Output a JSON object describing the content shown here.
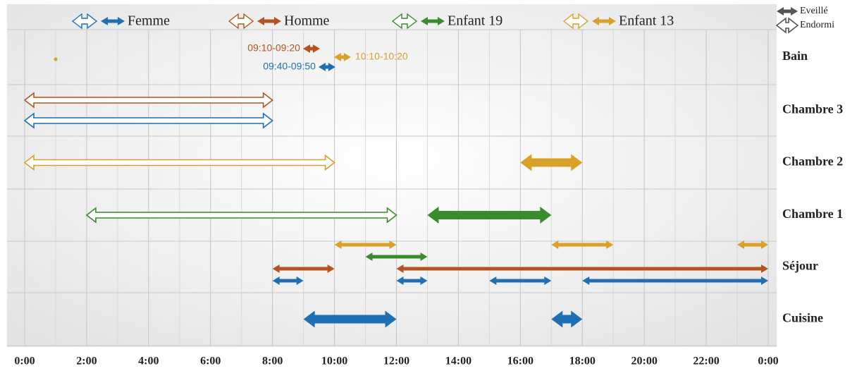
{
  "chart_data": {
    "type": "timeline",
    "persons": [
      {
        "name": "Femme",
        "color": "#1f6fb5"
      },
      {
        "name": "Homme",
        "color": "#b5541c"
      },
      {
        "name": "Enfant 19",
        "color": "#3a8a2e"
      },
      {
        "name": "Enfant 13",
        "color": "#d9a02a"
      }
    ],
    "states": [
      {
        "label": "Eveillé",
        "state": "awake"
      },
      {
        "label": "Endormi",
        "state": "asleep"
      }
    ],
    "xlim": [
      0,
      24
    ],
    "xticks": [
      {
        "value": 0,
        "label": "0:00"
      },
      {
        "value": 2,
        "label": "2:00"
      },
      {
        "value": 4,
        "label": "4:00"
      },
      {
        "value": 6,
        "label": "6:00"
      },
      {
        "value": 8,
        "label": "8:00"
      },
      {
        "value": 10,
        "label": "10:00"
      },
      {
        "value": 12,
        "label": "12:00"
      },
      {
        "value": 14,
        "label": "14:00"
      },
      {
        "value": 16,
        "label": "16:00"
      },
      {
        "value": 18,
        "label": "18:00"
      },
      {
        "value": 20,
        "label": "20:00"
      },
      {
        "value": 22,
        "label": "22:00"
      },
      {
        "value": 24,
        "label": "0:00"
      }
    ],
    "minor_xticks": [
      1,
      3,
      5,
      7,
      9,
      11,
      13,
      15,
      17,
      19,
      21,
      23
    ],
    "grid": true,
    "rows": [
      {
        "label": "Bain",
        "intervals": [
          {
            "person": 3,
            "start": 1,
            "end": 1,
            "state": "awake"
          },
          {
            "person": 1,
            "start": 9.1667,
            "end": 9.3333,
            "state": "awake",
            "label": "09:10-09:20"
          },
          {
            "person": 3,
            "start": 10.1667,
            "end": 10.3333,
            "state": "awake",
            "label": "10:10-10:20"
          },
          {
            "person": 0,
            "start": 9.6667,
            "end": 9.8333,
            "state": "awake",
            "label": "09:40-09:50"
          }
        ]
      },
      {
        "label": "Chambre 3",
        "intervals": [
          {
            "person": 1,
            "start": 0,
            "end": 8,
            "state": "asleep"
          },
          {
            "person": 0,
            "start": 0,
            "end": 8,
            "state": "asleep"
          }
        ]
      },
      {
        "label": "Chambre 2",
        "intervals": [
          {
            "person": 3,
            "start": 0,
            "end": 10,
            "state": "asleep"
          },
          {
            "person": 3,
            "start": 16,
            "end": 18,
            "state": "awake",
            "thick": true
          }
        ]
      },
      {
        "label": "Chambre 1",
        "intervals": [
          {
            "person": 2,
            "start": 2,
            "end": 12,
            "state": "asleep"
          },
          {
            "person": 2,
            "start": 13,
            "end": 17,
            "state": "awake",
            "thick": true
          }
        ]
      },
      {
        "label": "Séjour",
        "intervals": [
          {
            "person": 3,
            "start": 10,
            "end": 12,
            "state": "awake"
          },
          {
            "person": 3,
            "start": 17,
            "end": 19,
            "state": "awake"
          },
          {
            "person": 3,
            "start": 23,
            "end": 24,
            "state": "awake"
          },
          {
            "person": 2,
            "start": 11,
            "end": 13,
            "state": "awake"
          },
          {
            "person": 1,
            "start": 8,
            "end": 10,
            "state": "awake"
          },
          {
            "person": 1,
            "start": 12,
            "end": 24,
            "state": "awake"
          },
          {
            "person": 0,
            "start": 8,
            "end": 9,
            "state": "awake"
          },
          {
            "person": 0,
            "start": 12,
            "end": 13,
            "state": "awake"
          },
          {
            "person": 0,
            "start": 15,
            "end": 17,
            "state": "awake"
          },
          {
            "person": 0,
            "start": 18,
            "end": 24,
            "state": "awake"
          }
        ]
      },
      {
        "label": "Cuisine",
        "intervals": [
          {
            "person": 0,
            "start": 9,
            "end": 12,
            "state": "awake",
            "thick": true
          },
          {
            "person": 0,
            "start": 17,
            "end": 18,
            "state": "awake",
            "thick": true
          }
        ]
      }
    ]
  }
}
